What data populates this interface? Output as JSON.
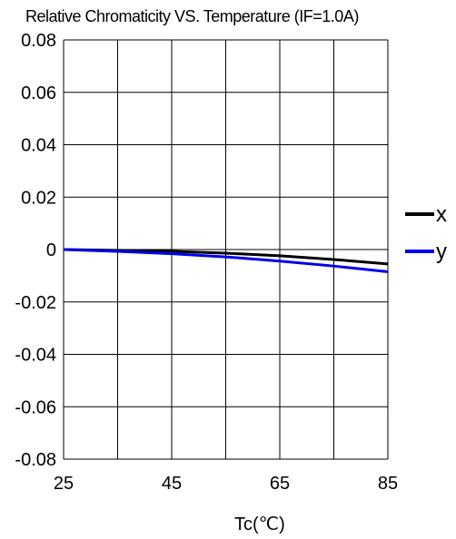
{
  "chart_data": {
    "type": "line",
    "title": "Relative Chromaticity VS. Temperature (IF=1.0A)",
    "xlabel": "Tc(℃)",
    "ylabel": "",
    "xlim": [
      25,
      85
    ],
    "ylim": [
      -0.08,
      0.08
    ],
    "x_ticks": [
      "25",
      "45",
      "65",
      "85"
    ],
    "y_ticks": [
      "0.08",
      "0.06",
      "0.04",
      "0.02",
      "0",
      "-0.02",
      "-0.04",
      "-0.06",
      "-0.08"
    ],
    "grid": true,
    "legend_position": "right",
    "series": [
      {
        "name": "x",
        "color": "#000000",
        "x": [
          25,
          35,
          45,
          55,
          65,
          75,
          85
        ],
        "y": [
          0,
          -0.0003,
          -0.0007,
          -0.0014,
          -0.0024,
          -0.0038,
          -0.0055
        ]
      },
      {
        "name": "y",
        "color": "#0000ee",
        "x": [
          25,
          35,
          45,
          55,
          65,
          75,
          85
        ],
        "y": [
          0,
          -0.0007,
          -0.0016,
          -0.0028,
          -0.0044,
          -0.0063,
          -0.0085
        ]
      }
    ]
  }
}
